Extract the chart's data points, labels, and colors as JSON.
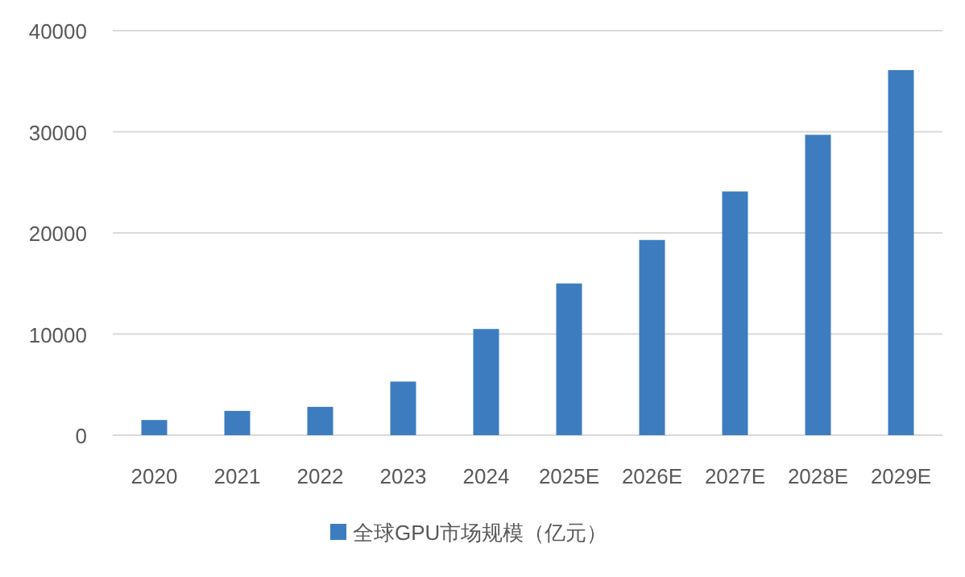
{
  "chart_data": {
    "type": "bar",
    "categories": [
      "2020",
      "2021",
      "2022",
      "2023",
      "2024",
      "2025E",
      "2026E",
      "2027E",
      "2028E",
      "2029E"
    ],
    "series": [
      {
        "name": "全球GPU市场规模（亿元）",
        "color": "#3d7dbf",
        "values": [
          1500,
          2400,
          2800,
          5300,
          10500,
          15000,
          19300,
          24100,
          29700,
          36100
        ]
      }
    ],
    "ylim": [
      0,
      40000
    ],
    "yticks": [
      0,
      10000,
      20000,
      30000,
      40000
    ],
    "grid": "y",
    "legend": "bottom"
  }
}
